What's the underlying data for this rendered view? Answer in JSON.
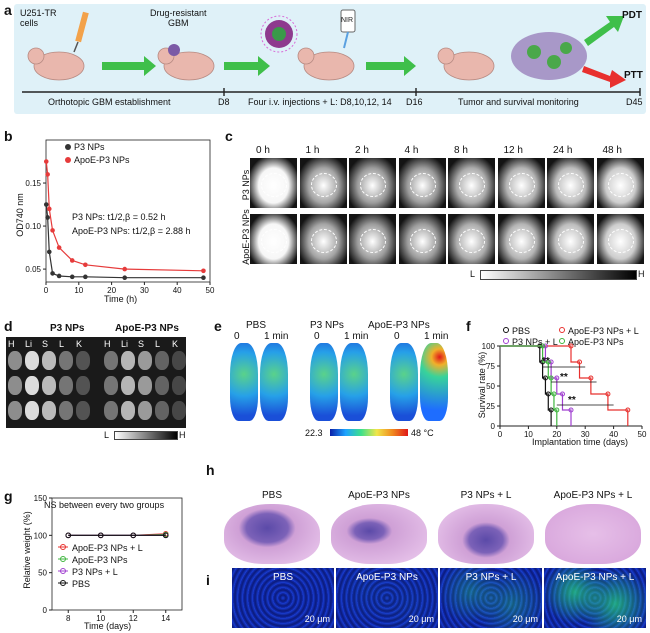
{
  "panel_a": {
    "label": "a",
    "cells_label_line1": "U251-TR",
    "cells_label_line2": "cells",
    "gbm_label_line1": "Drug-resistant",
    "gbm_label_line2": "GBM",
    "nir_label": "NIR",
    "pdt_label": "PDT",
    "ptt_label": "PTT",
    "timeline": [
      {
        "text": "Orthotopic GBM establishment"
      },
      {
        "text": "D8"
      },
      {
        "text": "Four i.v. injections + L: D8,10,12, 14"
      },
      {
        "text": "D16"
      },
      {
        "text": "Tumor and survival monitoring"
      },
      {
        "text": "D45"
      }
    ],
    "colors": {
      "background": "#dff1f8",
      "arrow_green": "#3fbf4a",
      "arrow_red": "#e8302e",
      "timeline_bar": "#222222"
    }
  },
  "panel_b": {
    "label": "b",
    "legend": [
      "P3 NPs",
      "ApoE-P3 NPs"
    ],
    "annotation_1": "P3 NPs: t1/2,β = 0.52 h",
    "annotation_2": "ApoE-P3 NPs: t1/2,β = 2.88 h",
    "ylabel": "OD740 nm",
    "xlabel": "Time (h)",
    "chart_data": {
      "type": "scatter",
      "xlim": [
        0,
        50
      ],
      "ylim": [
        0.035,
        0.2
      ],
      "xticks": [
        0,
        10,
        20,
        30,
        40,
        50
      ],
      "yticks": [
        0.05,
        0.1,
        0.15
      ],
      "series": [
        {
          "name": "P3 NPs",
          "color": "#333333",
          "x": [
            0.08,
            0.5,
            1,
            2,
            4,
            8,
            12,
            24,
            48
          ],
          "y": [
            0.125,
            0.11,
            0.07,
            0.045,
            0.042,
            0.041,
            0.041,
            0.04,
            0.04
          ]
        },
        {
          "name": "ApoE-P3 NPs",
          "color": "#e63b3b",
          "x": [
            0.08,
            0.5,
            1,
            2,
            4,
            8,
            12,
            24,
            48
          ],
          "y": [
            0.175,
            0.16,
            0.12,
            0.095,
            0.075,
            0.06,
            0.055,
            0.05,
            0.048
          ]
        }
      ]
    }
  },
  "panel_c": {
    "label": "c",
    "timepoints": [
      "0 h",
      "1 h",
      "2 h",
      "4 h",
      "8 h",
      "12 h",
      "24 h",
      "48 h"
    ],
    "rows": [
      "P3 NPs",
      "ApoE-P3 NPs"
    ],
    "scale_low": "L",
    "scale_high": "H"
  },
  "panel_d": {
    "label": "d",
    "groups": [
      "P3 NPs",
      "ApoE-P3 NPs"
    ],
    "organ_labels": [
      "H",
      "Li",
      "S",
      "L",
      "K"
    ],
    "scale_low": "L",
    "scale_high": "H"
  },
  "panel_e": {
    "label": "e",
    "groups": [
      "PBS",
      "P3 NPs",
      "ApoE-P3 NPs"
    ],
    "times": [
      "0",
      "1 min"
    ],
    "scale_min": "22.3",
    "scale_max": "48 °C"
  },
  "panel_f": {
    "label": "f",
    "legend": [
      "PBS",
      "ApoE-P3 NPs + L",
      "P3 NPs + L",
      "ApoE-P3 NPs"
    ],
    "ylabel": "Survival rate (%)",
    "xlabel": "Implantation time (days)",
    "sig": "**",
    "chart_data": {
      "type": "line",
      "xlim": [
        0,
        50
      ],
      "ylim": [
        0,
        100
      ],
      "xticks": [
        0,
        10,
        20,
        30,
        40,
        50
      ],
      "yticks": [
        0,
        25,
        50,
        75,
        100
      ],
      "series": [
        {
          "name": "PBS",
          "color": "#111111",
          "x": [
            0,
            14,
            15,
            16,
            17,
            18
          ],
          "y": [
            100,
            80,
            60,
            40,
            20,
            0
          ]
        },
        {
          "name": "ApoE-P3 NPs + L",
          "color": "#e8302e",
          "x": [
            0,
            25,
            28,
            32,
            38,
            45
          ],
          "y": [
            100,
            80,
            60,
            40,
            20,
            0
          ]
        },
        {
          "name": "P3 NPs + L",
          "color": "#a040d0",
          "x": [
            0,
            16,
            18,
            20,
            22,
            25
          ],
          "y": [
            100,
            80,
            60,
            40,
            20,
            0
          ]
        },
        {
          "name": "ApoE-P3 NPs",
          "color": "#3fb53f",
          "x": [
            0,
            15,
            17,
            18,
            19,
            20
          ],
          "y": [
            100,
            80,
            60,
            40,
            20,
            0
          ]
        }
      ]
    }
  },
  "panel_g": {
    "label": "g",
    "note": "NS between every two groups",
    "legend": [
      "ApoE-P3 NPs + L",
      "ApoE-P3 NPs",
      "P3 NPs + L",
      "PBS"
    ],
    "ylabel": "Relative weight (%)",
    "xlabel": "Time (days)",
    "chart_data": {
      "type": "line",
      "xlim": [
        7,
        15
      ],
      "ylim": [
        0,
        150
      ],
      "xticks": [
        8,
        10,
        12,
        14
      ],
      "yticks": [
        0,
        50,
        100,
        150
      ],
      "series": [
        {
          "name": "ApoE-P3 NPs + L",
          "color": "#e8302e",
          "x": [
            8,
            10,
            12,
            14
          ],
          "y": [
            100,
            100,
            100,
            102
          ]
        },
        {
          "name": "ApoE-P3 NPs",
          "color": "#3fb53f",
          "x": [
            8,
            10,
            12,
            14
          ],
          "y": [
            100,
            100,
            100,
            101
          ]
        },
        {
          "name": "P3 NPs + L",
          "color": "#a040d0",
          "x": [
            8,
            10,
            12,
            14
          ],
          "y": [
            100,
            100,
            100,
            100
          ]
        },
        {
          "name": "PBS",
          "color": "#111111",
          "x": [
            8,
            10,
            12,
            14
          ],
          "y": [
            100,
            100,
            100,
            100
          ]
        }
      ]
    }
  },
  "panel_h": {
    "label": "h",
    "groups": [
      "PBS",
      "ApoE-P3 NPs",
      "P3 NPs + L",
      "ApoE-P3 NPs + L"
    ]
  },
  "panel_i": {
    "label": "i",
    "groups": [
      "PBS",
      "ApoE-P3 NPs",
      "P3 NPs + L",
      "ApoE-P3 NPs + L"
    ],
    "scale_bar": "20 μm"
  }
}
